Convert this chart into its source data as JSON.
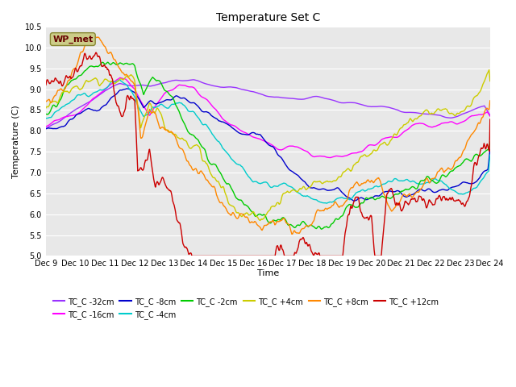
{
  "title": "Temperature Set C",
  "xlabel": "Time",
  "ylabel": "Temperature (C)",
  "ylim": [
    5.0,
    10.5
  ],
  "yticks": [
    5.0,
    5.5,
    6.0,
    6.5,
    7.0,
    7.5,
    8.0,
    8.5,
    9.0,
    9.5,
    10.0,
    10.5
  ],
  "bg_color": "#e8e8e8",
  "series_colors": {
    "TC_C -32cm": "#9933ff",
    "TC_C -16cm": "#ff00ff",
    "TC_C -8cm": "#0000cc",
    "TC_C -4cm": "#00cccc",
    "TC_C -2cm": "#00cc00",
    "TC_C +4cm": "#cccc00",
    "TC_C +8cm": "#ff8800",
    "TC_C +12cm": "#cc0000"
  },
  "wp_met_box_color": "#cccc88",
  "wp_met_text_color": "#660000"
}
